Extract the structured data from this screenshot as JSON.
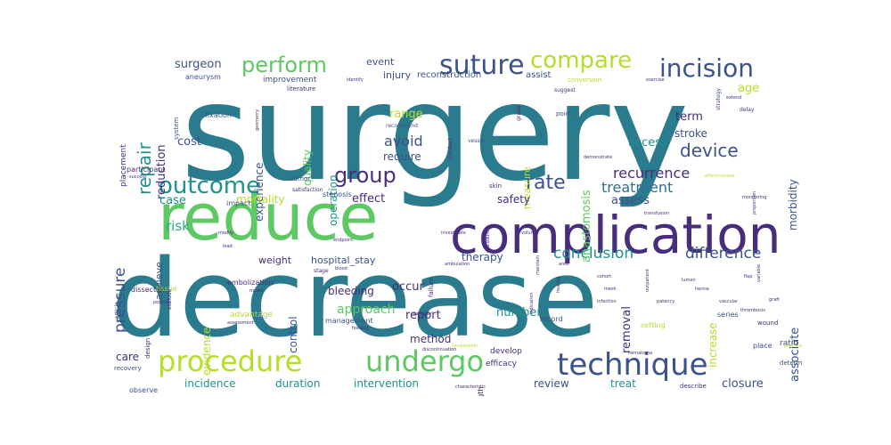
{
  "colors": {
    "teal": "#2a7b8e",
    "dark_purple": "#472d7b",
    "purple": "#3b528b",
    "blue": "#2c728e",
    "green": "#5ec962",
    "lime": "#b5de2b",
    "cyan": "#21918c",
    "sea": "#27ad81",
    "background": "#ffffff"
  },
  "words": [
    {
      "id": "surgery",
      "text": "surgery",
      "size": 150,
      "color": "#2a7b8e"
    },
    {
      "id": "decrease",
      "text": "decrease",
      "size": 120,
      "color": "#2a7b8e"
    },
    {
      "id": "reduce",
      "text": "reduce",
      "size": 72,
      "color": "#5ec962"
    },
    {
      "id": "complication",
      "text": "complication",
      "size": 58,
      "color": "#472d7b"
    },
    {
      "id": "technique",
      "text": "technique",
      "size": 34,
      "color": "#3b528b"
    },
    {
      "id": "procedure",
      "text": "procedure",
      "size": 32,
      "color": "#b5de2b"
    },
    {
      "id": "undergo",
      "text": "undergo",
      "size": 32,
      "color": "#5ec962"
    },
    {
      "id": "suture",
      "text": "suture",
      "size": 30,
      "color": "#3b528b"
    },
    {
      "id": "incision",
      "text": "incision",
      "size": 28,
      "color": "#3b528b"
    },
    {
      "id": "compare",
      "text": "compare",
      "size": 26,
      "color": "#b5de2b"
    },
    {
      "id": "perform",
      "text": "perform",
      "size": 24,
      "color": "#5ec962"
    },
    {
      "id": "outcome",
      "text": "outcome",
      "size": 26,
      "color": "#21918c"
    },
    {
      "id": "group",
      "text": "group",
      "size": 24,
      "color": "#472d7b"
    },
    {
      "id": "rate",
      "text": "rate",
      "size": 22,
      "color": "#3b528b"
    },
    {
      "id": "repair",
      "text": "repair",
      "size": 20,
      "color": "#21918c"
    },
    {
      "id": "device",
      "text": "device",
      "size": 20,
      "color": "#3b528b"
    },
    {
      "id": "pressure",
      "text": "pressure",
      "size": 17,
      "color": "#3b528b"
    },
    {
      "id": "conclusion",
      "text": "conclusion",
      "size": 17,
      "color": "#21918c"
    },
    {
      "id": "difference",
      "text": "difference",
      "size": 17,
      "color": "#3b528b"
    },
    {
      "id": "recurrence",
      "text": "recurrence",
      "size": 16,
      "color": "#472d7b"
    },
    {
      "id": "treatment",
      "text": "treatment",
      "size": 16,
      "color": "#2c728e"
    },
    {
      "id": "avoid",
      "text": "avoid",
      "size": 16,
      "color": "#3b528b"
    },
    {
      "id": "surgeon",
      "text": "surgeon",
      "size": 13,
      "color": "#3b528b"
    },
    {
      "id": "reduction",
      "text": "reduction",
      "size": 13,
      "color": "#472d7b"
    },
    {
      "id": "cost",
      "text": "cost",
      "size": 13,
      "color": "#3b528b"
    },
    {
      "id": "case",
      "text": "case",
      "size": 13,
      "color": "#21918c"
    },
    {
      "id": "risk",
      "text": "risk",
      "size": 15,
      "color": "#27ad81"
    },
    {
      "id": "experience",
      "text": "experience",
      "size": 12,
      "color": "#3b528b"
    },
    {
      "id": "quality",
      "text": "quality",
      "size": 12,
      "color": "#5ec962"
    },
    {
      "id": "operation",
      "text": "operation",
      "size": 12,
      "color": "#21918c"
    },
    {
      "id": "range",
      "text": "range",
      "size": 13,
      "color": "#b5de2b"
    },
    {
      "id": "require",
      "text": "require",
      "size": 12,
      "color": "#3b528b"
    },
    {
      "id": "effect",
      "text": "effect",
      "size": 13,
      "color": "#472d7b"
    },
    {
      "id": "mortality",
      "text": "mortality",
      "size": 12,
      "color": "#b5de2b"
    },
    {
      "id": "achieve",
      "text": "achieve",
      "size": 11,
      "color": "#3b528b"
    },
    {
      "id": "measure",
      "text": "measure",
      "size": 11,
      "color": "#b5de2b"
    },
    {
      "id": "access",
      "text": "access",
      "size": 13,
      "color": "#21918c"
    },
    {
      "id": "anastomosis",
      "text": "anastomosis",
      "size": 13,
      "color": "#5ec962"
    },
    {
      "id": "safety",
      "text": "safety",
      "size": 12,
      "color": "#472d7b"
    },
    {
      "id": "assess",
      "text": "assess",
      "size": 13,
      "color": "#3b528b"
    },
    {
      "id": "term",
      "text": "term",
      "size": 13,
      "color": "#472d7b"
    },
    {
      "id": "stroke",
      "text": "stroke",
      "size": 12,
      "color": "#3b528b"
    },
    {
      "id": "age",
      "text": "age",
      "size": 13,
      "color": "#b5de2b"
    },
    {
      "id": "morbidity",
      "text": "morbidity",
      "size": 12,
      "color": "#3b528b"
    },
    {
      "id": "therapy",
      "text": "therapy",
      "size": 12,
      "color": "#3b528b"
    },
    {
      "id": "control",
      "text": "control",
      "size": 12,
      "color": "#3b528b"
    },
    {
      "id": "evidence",
      "text": "evidence",
      "size": 12,
      "color": "#b5de2b"
    },
    {
      "id": "weight",
      "text": "weight",
      "size": 11,
      "color": "#472d7b"
    },
    {
      "id": "hospital_stay",
      "text": "hospital_stay",
      "size": 11,
      "color": "#3b528b"
    },
    {
      "id": "bleeding",
      "text": "bleeding",
      "size": 12,
      "color": "#472d7b"
    },
    {
      "id": "approach",
      "text": "approach",
      "size": 14,
      "color": "#5ec962"
    },
    {
      "id": "occur",
      "text": "occur",
      "size": 13,
      "color": "#472d7b"
    },
    {
      "id": "report",
      "text": "report",
      "size": 13,
      "color": "#472d7b"
    },
    {
      "id": "number",
      "text": "number",
      "size": 13,
      "color": "#21918c"
    },
    {
      "id": "removal",
      "text": "removal",
      "size": 13,
      "color": "#472d7b"
    },
    {
      "id": "increase",
      "text": "increase",
      "size": 12,
      "color": "#b5de2b"
    },
    {
      "id": "associate",
      "text": "associate",
      "size": 13,
      "color": "#3b528b"
    },
    {
      "id": "method",
      "text": "method",
      "size": 12,
      "color": "#472d7b"
    },
    {
      "id": "care",
      "text": "care",
      "size": 12,
      "color": "#472d7b"
    },
    {
      "id": "incidence",
      "text": "incidence",
      "size": 12,
      "color": "#21918c"
    },
    {
      "id": "duration",
      "text": "duration",
      "size": 12,
      "color": "#21918c"
    },
    {
      "id": "intervention",
      "text": "intervention",
      "size": 12,
      "color": "#21918c"
    },
    {
      "id": "review",
      "text": "review",
      "size": 12,
      "color": "#3b528b"
    },
    {
      "id": "treat",
      "text": "treat",
      "size": 12,
      "color": "#21918c"
    },
    {
      "id": "closure",
      "text": "closure",
      "size": 13,
      "color": "#3b528b"
    },
    {
      "id": "event",
      "text": "event",
      "size": 11,
      "color": "#3b528b"
    },
    {
      "id": "injury",
      "text": "injury",
      "size": 11,
      "color": "#3b528b"
    },
    {
      "id": "reconstruction",
      "text": "reconstruction",
      "size": 10,
      "color": "#3b528b"
    },
    {
      "id": "assist",
      "text": "assist",
      "size": 10,
      "color": "#3b528b"
    },
    {
      "id": "improvement",
      "text": "improvement",
      "size": 9,
      "color": "#3b528b"
    },
    {
      "id": "aneurysm",
      "text": "aneurysm",
      "size": 8,
      "color": "#3b528b"
    },
    {
      "id": "advantage",
      "text": "advantage",
      "size": 9,
      "color": "#b5de2b"
    },
    {
      "id": "management",
      "text": "management",
      "size": 8,
      "color": "#3b528b"
    },
    {
      "id": "develop",
      "text": "develop",
      "size": 9,
      "color": "#472d7b"
    },
    {
      "id": "efficacy",
      "text": "efficacy",
      "size": 9,
      "color": "#472d7b"
    },
    {
      "id": "length",
      "text": "length",
      "size": 8,
      "color": "#472d7b"
    },
    {
      "id": "ratio",
      "text": "ratio",
      "size": 9,
      "color": "#3b528b"
    },
    {
      "id": "place",
      "text": "place",
      "size": 8,
      "color": "#3b528b"
    },
    {
      "id": "series",
      "text": "series",
      "size": 8,
      "color": "#3b528b"
    },
    {
      "id": "setting",
      "text": "setting",
      "size": 8,
      "color": "#b5de2b"
    },
    {
      "id": "record",
      "text": "record",
      "size": 8,
      "color": "#3b528b"
    },
    {
      "id": "describe",
      "text": "describe",
      "size": 7,
      "color": "#472d7b"
    },
    {
      "id": "determine",
      "text": "determine",
      "size": 7,
      "color": "#3b528b"
    },
    {
      "id": "wound",
      "text": "wound",
      "size": 7,
      "color": "#472d7b"
    },
    {
      "id": "observe",
      "text": "observe",
      "size": 8,
      "color": "#3b528b"
    },
    {
      "id": "recovery",
      "text": "recovery",
      "size": 7,
      "color": "#3b528b"
    },
    {
      "id": "placement",
      "text": "placement",
      "size": 9,
      "color": "#472d7b"
    },
    {
      "id": "participant",
      "text": "participant",
      "size": 8,
      "color": "#472d7b"
    },
    {
      "id": "fixation",
      "text": "fixation",
      "size": 8,
      "color": "#3b528b"
    },
    {
      "id": "literature",
      "text": "literature",
      "size": 7,
      "color": "#472d7b"
    },
    {
      "id": "author",
      "text": "author",
      "size": 7,
      "color": "#3b528b"
    },
    {
      "id": "stenosis",
      "text": "stenosis",
      "size": 8,
      "color": "#3b528b"
    },
    {
      "id": "impact",
      "text": "impact",
      "size": 8,
      "color": "#3b528b"
    },
    {
      "id": "embolization",
      "text": "embolization",
      "size": 8,
      "color": "#472d7b"
    },
    {
      "id": "dissection",
      "text": "dissection",
      "size": 8,
      "color": "#472d7b"
    },
    {
      "id": "tissue",
      "text": "tissue",
      "size": 8,
      "color": "#b5de2b"
    },
    {
      "id": "design",
      "text": "design",
      "size": 7,
      "color": "#472d7b"
    },
    {
      "id": "point",
      "text": "point",
      "size": 7,
      "color": "#3b528b"
    },
    {
      "id": "skin",
      "text": "skin",
      "size": 7,
      "color": "#472d7b"
    },
    {
      "id": "conversion",
      "text": "conversion",
      "size": 7,
      "color": "#b5de2b"
    },
    {
      "id": "stage",
      "text": "stage",
      "size": 6,
      "color": "#472d7b"
    },
    {
      "id": "failure",
      "text": "failure",
      "size": 7,
      "color": "#472d7b"
    },
    {
      "id": "conduct",
      "text": "conduct",
      "size": 6,
      "color": "#472d7b"
    },
    {
      "id": "delay",
      "text": "delay",
      "size": 6,
      "color": "#472d7b"
    },
    {
      "id": "grade",
      "text": "grade",
      "size": 6,
      "color": "#472d7b"
    },
    {
      "id": "system",
      "text": "system",
      "size": 7,
      "color": "#3b528b"
    },
    {
      "id": "suggest",
      "text": "suggest",
      "size": 6,
      "color": "#472d7b"
    },
    {
      "id": "recommend",
      "text": "recommend",
      "size": 6,
      "color": "#3b528b"
    },
    {
      "id": "vessel",
      "text": "vessel",
      "size": 6,
      "color": "#3b528b"
    },
    {
      "id": "strategy",
      "text": "strategy",
      "size": 6,
      "color": "#3b528b"
    },
    {
      "id": "satisfaction",
      "text": "satisfaction",
      "size": 6,
      "color": "#472d7b"
    },
    {
      "id": "exclude",
      "text": "exclude",
      "size": 6,
      "color": "#472d7b"
    },
    {
      "id": "ambulation",
      "text": "ambulation",
      "size": 5,
      "color": "#472d7b"
    },
    {
      "id": "position",
      "text": "position",
      "size": 5,
      "color": "#472d7b"
    },
    {
      "id": "blood",
      "text": "blood",
      "size": 5,
      "color": "#472d7b"
    },
    {
      "id": "model",
      "text": "model",
      "size": 5,
      "color": "#472d7b"
    },
    {
      "id": "article",
      "text": "article",
      "size": 6,
      "color": "#3b528b"
    },
    {
      "id": "diameter",
      "text": "diameter",
      "size": 5,
      "color": "#472d7b"
    },
    {
      "id": "feeding",
      "text": "feeding",
      "size": 5,
      "color": "#472d7b"
    },
    {
      "id": "discontinuation",
      "text": "discontinuation",
      "size": 5,
      "color": "#472d7b"
    },
    {
      "id": "localization",
      "text": "localization",
      "size": 5,
      "color": "#b5de2b"
    },
    {
      "id": "characteristic",
      "text": "characteristic",
      "size": 5,
      "color": "#472d7b"
    },
    {
      "id": "transfusion",
      "text": "transfusion",
      "size": 5,
      "color": "#472d7b"
    },
    {
      "id": "effectiveness",
      "text": "effectiveness",
      "size": 5,
      "color": "#b5de2b"
    },
    {
      "id": "monitoring",
      "text": "monitoring",
      "size": 5,
      "color": "#472d7b"
    },
    {
      "id": "practice",
      "text": "practice",
      "size": 5,
      "color": "#b5de2b"
    },
    {
      "id": "procedures_small",
      "text": "procedure",
      "size": 5,
      "color": "#472d7b"
    },
    {
      "id": "identify",
      "text": "identify",
      "size": 5,
      "color": "#472d7b"
    },
    {
      "id": "demonstrate",
      "text": "demonstrate",
      "size": 5,
      "color": "#472d7b"
    },
    {
      "id": "exercise",
      "text": "exercise",
      "size": 5,
      "color": "#472d7b"
    },
    {
      "id": "endpoint",
      "text": "endpoint",
      "size": 5,
      "color": "#472d7b"
    },
    {
      "id": "success",
      "text": "success",
      "size": 5,
      "color": "#472d7b"
    },
    {
      "id": "modify",
      "text": "modify",
      "size": 5,
      "color": "#472d7b"
    },
    {
      "id": "lead",
      "text": "lead",
      "size": 5,
      "color": "#472d7b"
    },
    {
      "id": "area",
      "text": "area",
      "size": 5,
      "color": "#472d7b"
    },
    {
      "id": "maintain",
      "text": "maintain",
      "size": 5,
      "color": "#472d7b"
    },
    {
      "id": "extend",
      "text": "extend",
      "size": 5,
      "color": "#472d7b"
    },
    {
      "id": "investigate",
      "text": "investigate",
      "size": 5,
      "color": "#472d7b"
    },
    {
      "id": "volume",
      "text": "volume",
      "size": 5,
      "color": "#472d7b"
    },
    {
      "id": "geometry",
      "text": "geometry",
      "size": 5,
      "color": "#472d7b"
    },
    {
      "id": "proportion",
      "text": "proportion",
      "size": 5,
      "color": "#472d7b"
    },
    {
      "id": "indication",
      "text": "indication",
      "size": 5,
      "color": "#472d7b"
    },
    {
      "id": "assessment",
      "text": "assessment",
      "size": 5,
      "color": "#472d7b"
    },
    {
      "id": "healing",
      "text": "healing",
      "size": 5,
      "color": "#472d7b"
    },
    {
      "id": "variable",
      "text": "variable",
      "size": 5,
      "color": "#472d7b"
    },
    {
      "id": "outpatient",
      "text": "outpatient",
      "size": 5,
      "color": "#472d7b"
    },
    {
      "id": "lumen",
      "text": "lumen",
      "size": 5,
      "color": "#472d7b"
    },
    {
      "id": "flap",
      "text": "flap",
      "size": 5,
      "color": "#472d7b"
    },
    {
      "id": "cohort",
      "text": "cohort",
      "size": 5,
      "color": "#472d7b"
    },
    {
      "id": "mesh",
      "text": "mesh",
      "size": 5,
      "color": "#472d7b"
    },
    {
      "id": "hernia",
      "text": "hernia",
      "size": 5,
      "color": "#472d7b"
    },
    {
      "id": "graft",
      "text": "graft",
      "size": 5,
      "color": "#472d7b"
    },
    {
      "id": "patency",
      "text": "patency",
      "size": 5,
      "color": "#472d7b"
    },
    {
      "id": "vascular",
      "text": "vascular",
      "size": 5,
      "color": "#472d7b"
    },
    {
      "id": "thrombosis",
      "text": "thrombosis",
      "size": 5,
      "color": "#472d7b"
    },
    {
      "id": "infection",
      "text": "infection",
      "size": 5,
      "color": "#472d7b"
    },
    {
      "id": "hematoma",
      "text": "hematoma",
      "size": 5,
      "color": "#472d7b"
    }
  ]
}
